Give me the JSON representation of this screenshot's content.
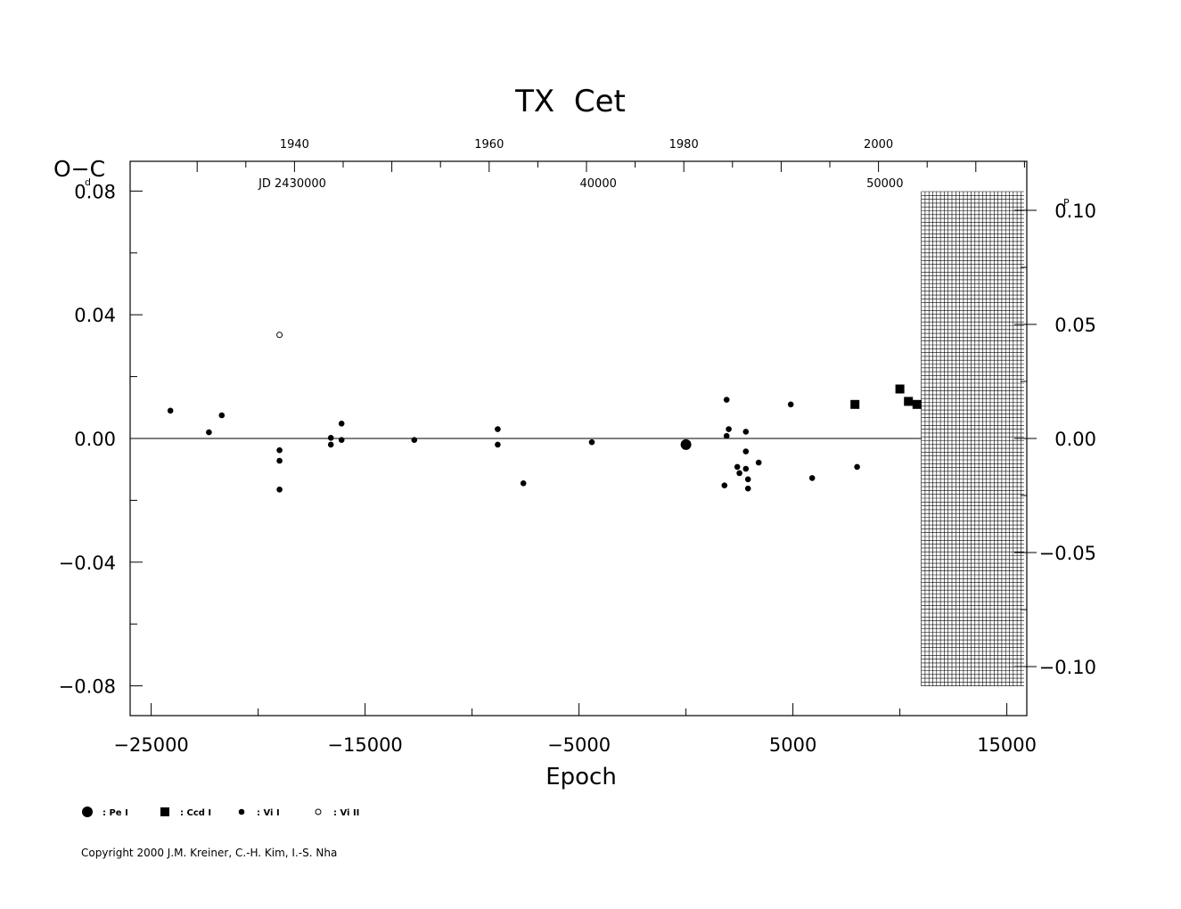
{
  "chart_data": {
    "type": "scatter",
    "title": "TX  Cet",
    "xlabel": "Epoch",
    "ylabel": "O−C",
    "ylabel_unit": "d",
    "right_axis_unit": "P",
    "xlim": [
      -26000,
      16000
    ],
    "ylim": [
      -0.09,
      0.09
    ],
    "y2lim": [
      -0.1125,
      0.1125
    ],
    "x_ticks": [
      -25000,
      -15000,
      -5000,
      5000,
      15000
    ],
    "x_tick_labels": [
      "−25000",
      "−15000",
      "−5000",
      "5000",
      "15000"
    ],
    "y_ticks": [
      0.08,
      0.04,
      0.0,
      -0.04,
      -0.08
    ],
    "y_tick_labels": [
      "0.08",
      "0.04",
      "0.00",
      "−0.04",
      "−0.08"
    ],
    "y2_ticks": [
      0.1,
      0.05,
      0.0,
      -0.05,
      -0.1
    ],
    "y2_tick_labels": [
      "0.10",
      "0.05",
      "0.00",
      "−0.05",
      "−0.10"
    ],
    "top_year_ticks": [
      1940,
      1960,
      1980,
      2000
    ],
    "top_year_epochs": [
      -18300,
      -9200,
      -100,
      9000
    ],
    "jd_labels": [
      {
        "text": "JD  2430000",
        "epoch": -18400
      },
      {
        "text": "40000",
        "epoch": -4100
      },
      {
        "text": "50000",
        "epoch": 9300
      }
    ],
    "zero_line_to": 11000,
    "future_region_from": 11000,
    "grid": false,
    "legend_position": "bottom-left",
    "legend": [
      {
        "symbol": "big-dot",
        "label": ": Pe  I"
      },
      {
        "symbol": "square",
        "label": ": Ccd  I"
      },
      {
        "symbol": "dot",
        "label": ": Vi  I"
      },
      {
        "symbol": "open-circle",
        "label": ": Vi  II"
      }
    ],
    "series": [
      {
        "name": ": Pe  I",
        "symbol": "big-dot",
        "points": [
          [
            0,
            -0.002
          ]
        ]
      },
      {
        "name": ": Ccd  I",
        "symbol": "square",
        "points": [
          [
            7900,
            0.011
          ],
          [
            10000,
            0.016
          ],
          [
            10400,
            0.012
          ],
          [
            10800,
            0.011
          ]
        ]
      },
      {
        "name": ": Vi  I",
        "symbol": "dot",
        "points": [
          [
            -24100,
            0.009
          ],
          [
            -22300,
            0.002
          ],
          [
            -21700,
            0.0075
          ],
          [
            -19000,
            -0.0038
          ],
          [
            -19000,
            -0.0072
          ],
          [
            -19000,
            -0.0165
          ],
          [
            -16600,
            0.0002
          ],
          [
            -16600,
            -0.002
          ],
          [
            -16100,
            0.0048
          ],
          [
            -16100,
            -0.0005
          ],
          [
            -12700,
            -0.0005
          ],
          [
            -8800,
            0.003
          ],
          [
            -8800,
            -0.002
          ],
          [
            -7600,
            -0.0145
          ],
          [
            -4400,
            -0.0012
          ],
          [
            1800,
            -0.0152
          ],
          [
            1900,
            0.0125
          ],
          [
            1900,
            0.0008
          ],
          [
            2000,
            0.003
          ],
          [
            2400,
            -0.0092
          ],
          [
            2500,
            -0.0112
          ],
          [
            2800,
            0.0022
          ],
          [
            2800,
            -0.0042
          ],
          [
            2800,
            -0.0098
          ],
          [
            2900,
            -0.0132
          ],
          [
            2900,
            -0.0162
          ],
          [
            3400,
            -0.0078
          ],
          [
            4900,
            0.011
          ],
          [
            5900,
            -0.0128
          ],
          [
            8000,
            -0.0092
          ]
        ]
      },
      {
        "name": ": Vi  II",
        "symbol": "open-circle",
        "points": [
          [
            -19000,
            0.0335
          ]
        ]
      }
    ]
  },
  "copyright": "Copyright 2000 J.M. Kreiner, C.-H. Kim, I.-S. Nha"
}
